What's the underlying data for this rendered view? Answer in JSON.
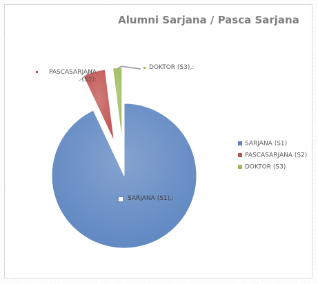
{
  "chart_data": {
    "type": "pie",
    "title": "Alumni Sarjana / Pasca Sarjana",
    "categories": [
      "SARJANA (S1)",
      "PASCASARJANA (S2)",
      "DOKTOR (S3)"
    ],
    "values": [
      93,
      5,
      2
    ],
    "value_labels": [
      "SARJANA (S1),:",
      "PASCASARJANA (S2):",
      "DOKTOR (S3),:"
    ],
    "colors": [
      "#5b84c0",
      "#c0504d",
      "#9bbb59"
    ],
    "exploded": [
      false,
      true,
      true
    ],
    "legend": "right"
  }
}
